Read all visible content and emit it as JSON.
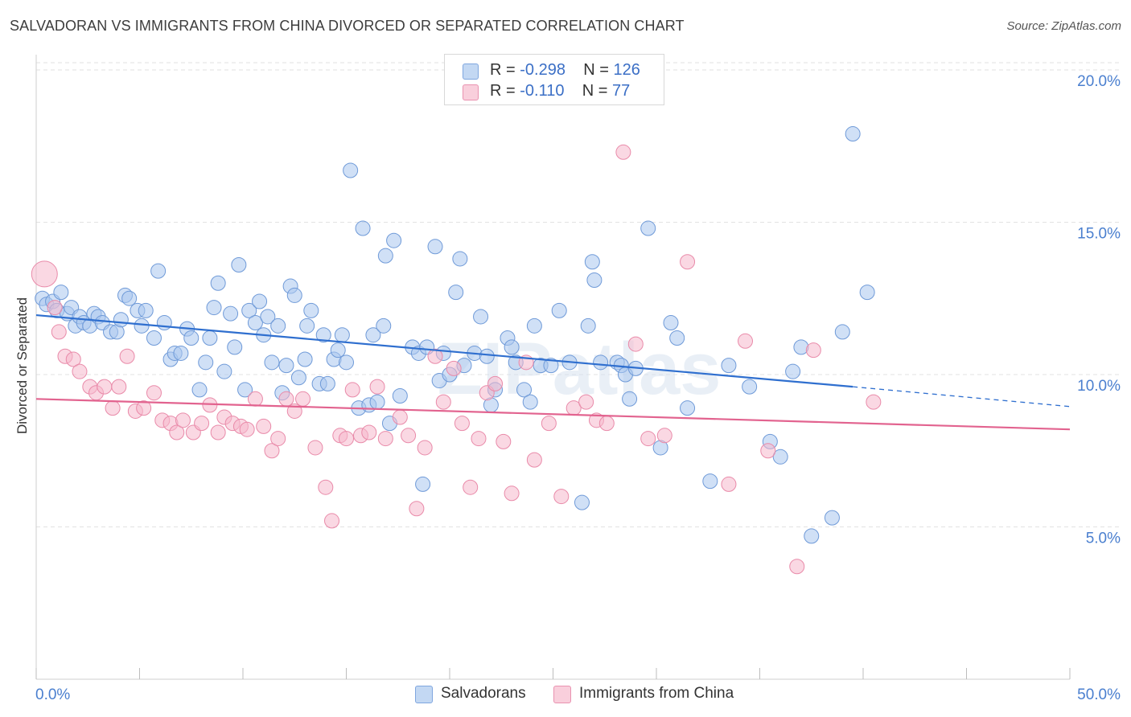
{
  "title": "SALVADORAN VS IMMIGRANTS FROM CHINA DIVORCED OR SEPARATED CORRELATION CHART",
  "source": "Source: ZipAtlas.com",
  "watermark": "ZIPatlas",
  "legend": {
    "rows": [
      {
        "r_label": "R = ",
        "r_value": "-0.298",
        "n_label": "N = ",
        "n_value": "126",
        "color": "#a9c7ee"
      },
      {
        "r_label": "R = ",
        "r_value": " -0.110",
        "n_label": "N = ",
        "n_value": " 77",
        "color": "#f5b8cc"
      }
    ]
  },
  "chart_data": {
    "type": "scatter",
    "xlabel": "",
    "ylabel": "Divorced or Separated",
    "xlim": [
      0,
      50
    ],
    "ylim": [
      0,
      20.5
    ],
    "x_tick_labels": [
      "0.0%",
      "50.0%"
    ],
    "y_ticks": [
      5,
      10,
      15,
      20
    ],
    "y_tick_labels": [
      "5.0%",
      "10.0%",
      "15.0%",
      "20.0%"
    ],
    "grid": true,
    "series": [
      {
        "name": "Salvadorans",
        "color": "#a9c7ee",
        "stroke": "#6f9ad8",
        "trend": {
          "x0": 0,
          "y0": 11.95,
          "x1": 39.5,
          "y1": 9.6,
          "dash_to": 50,
          "dash_y": 8.95,
          "color": "#2f6fcf"
        },
        "points": [
          [
            0.3,
            12.5
          ],
          [
            0.5,
            12.3
          ],
          [
            0.8,
            12.4
          ],
          [
            1.0,
            12.1
          ],
          [
            1.2,
            12.7
          ],
          [
            1.5,
            12.0
          ],
          [
            1.7,
            12.2
          ],
          [
            1.9,
            11.6
          ],
          [
            2.1,
            11.9
          ],
          [
            2.3,
            11.7
          ],
          [
            2.6,
            11.6
          ],
          [
            2.8,
            12.0
          ],
          [
            3.0,
            11.9
          ],
          [
            3.2,
            11.7
          ],
          [
            3.6,
            11.4
          ],
          [
            3.9,
            11.4
          ],
          [
            4.1,
            11.8
          ],
          [
            4.3,
            12.6
          ],
          [
            4.5,
            12.5
          ],
          [
            4.9,
            12.1
          ],
          [
            5.1,
            11.6
          ],
          [
            5.3,
            12.1
          ],
          [
            5.7,
            11.2
          ],
          [
            5.9,
            13.4
          ],
          [
            6.2,
            11.7
          ],
          [
            6.5,
            10.5
          ],
          [
            6.7,
            10.7
          ],
          [
            7.0,
            10.7
          ],
          [
            7.3,
            11.5
          ],
          [
            7.5,
            11.2
          ],
          [
            7.9,
            9.5
          ],
          [
            8.2,
            10.4
          ],
          [
            8.4,
            11.2
          ],
          [
            8.6,
            12.2
          ],
          [
            8.8,
            13.0
          ],
          [
            9.1,
            10.1
          ],
          [
            9.4,
            12.0
          ],
          [
            9.6,
            10.9
          ],
          [
            9.8,
            13.6
          ],
          [
            10.1,
            9.5
          ],
          [
            10.3,
            12.1
          ],
          [
            10.6,
            11.7
          ],
          [
            10.8,
            12.4
          ],
          [
            11.0,
            11.3
          ],
          [
            11.2,
            11.9
          ],
          [
            11.4,
            10.4
          ],
          [
            11.7,
            11.6
          ],
          [
            11.9,
            9.4
          ],
          [
            12.1,
            10.3
          ],
          [
            12.3,
            12.9
          ],
          [
            12.5,
            12.6
          ],
          [
            12.7,
            9.9
          ],
          [
            13.0,
            10.5
          ],
          [
            13.1,
            11.6
          ],
          [
            13.3,
            12.1
          ],
          [
            13.7,
            9.7
          ],
          [
            13.9,
            11.3
          ],
          [
            14.1,
            9.7
          ],
          [
            14.4,
            10.5
          ],
          [
            14.6,
            10.8
          ],
          [
            14.8,
            11.3
          ],
          [
            15.0,
            10.4
          ],
          [
            15.2,
            16.7
          ],
          [
            15.6,
            8.9
          ],
          [
            15.8,
            14.8
          ],
          [
            16.1,
            9.0
          ],
          [
            16.3,
            11.3
          ],
          [
            16.5,
            9.1
          ],
          [
            16.8,
            11.6
          ],
          [
            16.9,
            13.9
          ],
          [
            17.1,
            8.4
          ],
          [
            17.3,
            14.4
          ],
          [
            17.6,
            9.3
          ],
          [
            18.2,
            10.9
          ],
          [
            18.5,
            10.7
          ],
          [
            18.7,
            6.4
          ],
          [
            18.9,
            10.9
          ],
          [
            19.3,
            14.2
          ],
          [
            19.5,
            9.8
          ],
          [
            19.7,
            10.7
          ],
          [
            20.0,
            10.0
          ],
          [
            20.3,
            12.7
          ],
          [
            20.5,
            13.8
          ],
          [
            20.7,
            10.3
          ],
          [
            21.2,
            10.7
          ],
          [
            21.5,
            11.9
          ],
          [
            21.8,
            10.6
          ],
          [
            22.0,
            9.0
          ],
          [
            22.2,
            9.5
          ],
          [
            22.8,
            11.2
          ],
          [
            23.0,
            10.9
          ],
          [
            23.2,
            10.4
          ],
          [
            23.6,
            9.5
          ],
          [
            23.9,
            9.1
          ],
          [
            24.1,
            11.6
          ],
          [
            24.4,
            10.3
          ],
          [
            24.9,
            10.3
          ],
          [
            25.3,
            12.1
          ],
          [
            25.8,
            10.4
          ],
          [
            26.4,
            5.8
          ],
          [
            26.7,
            11.6
          ],
          [
            26.9,
            13.7
          ],
          [
            27.0,
            13.1
          ],
          [
            27.3,
            10.4
          ],
          [
            28.1,
            10.4
          ],
          [
            28.3,
            10.3
          ],
          [
            28.5,
            10.0
          ],
          [
            28.7,
            9.2
          ],
          [
            29.0,
            10.2
          ],
          [
            29.6,
            14.8
          ],
          [
            30.2,
            7.6
          ],
          [
            30.7,
            11.7
          ],
          [
            31.0,
            11.2
          ],
          [
            31.5,
            8.9
          ],
          [
            32.6,
            6.5
          ],
          [
            33.5,
            10.3
          ],
          [
            35.5,
            7.8
          ],
          [
            36.0,
            7.3
          ],
          [
            36.6,
            10.1
          ],
          [
            37.5,
            4.7
          ],
          [
            38.5,
            5.3
          ],
          [
            39.0,
            11.4
          ],
          [
            39.5,
            17.9
          ],
          [
            40.2,
            12.7
          ],
          [
            37.0,
            10.9
          ],
          [
            34.5,
            9.6
          ]
        ]
      },
      {
        "name": "Immigrants from China",
        "color": "#f5b8cc",
        "stroke": "#e98aa9",
        "trend": {
          "x0": 0,
          "y0": 9.2,
          "x1": 50,
          "y1": 8.2,
          "color": "#e2638f"
        },
        "points": [
          [
            0.4,
            13.3
          ],
          [
            0.9,
            12.2
          ],
          [
            1.1,
            11.4
          ],
          [
            1.4,
            10.6
          ],
          [
            1.8,
            10.5
          ],
          [
            2.1,
            10.1
          ],
          [
            2.6,
            9.6
          ],
          [
            2.9,
            9.4
          ],
          [
            3.3,
            9.6
          ],
          [
            3.7,
            8.9
          ],
          [
            4.0,
            9.6
          ],
          [
            4.4,
            10.6
          ],
          [
            4.8,
            8.8
          ],
          [
            5.2,
            8.9
          ],
          [
            5.7,
            9.4
          ],
          [
            6.1,
            8.5
          ],
          [
            6.5,
            8.4
          ],
          [
            6.8,
            8.1
          ],
          [
            7.1,
            8.5
          ],
          [
            7.6,
            8.1
          ],
          [
            8.0,
            8.4
          ],
          [
            8.4,
            9.0
          ],
          [
            8.8,
            8.1
          ],
          [
            9.1,
            8.6
          ],
          [
            9.5,
            8.4
          ],
          [
            9.9,
            8.3
          ],
          [
            10.2,
            8.2
          ],
          [
            10.6,
            9.2
          ],
          [
            11.0,
            8.3
          ],
          [
            11.4,
            7.5
          ],
          [
            11.7,
            7.9
          ],
          [
            12.1,
            9.2
          ],
          [
            12.5,
            8.8
          ],
          [
            12.9,
            9.2
          ],
          [
            13.5,
            7.6
          ],
          [
            14.0,
            6.3
          ],
          [
            14.3,
            5.2
          ],
          [
            14.7,
            8.0
          ],
          [
            15.0,
            7.9
          ],
          [
            15.3,
            9.5
          ],
          [
            15.7,
            8.0
          ],
          [
            16.1,
            8.1
          ],
          [
            16.5,
            9.6
          ],
          [
            16.9,
            7.9
          ],
          [
            17.6,
            8.6
          ],
          [
            18.0,
            8.0
          ],
          [
            18.4,
            5.6
          ],
          [
            18.8,
            7.6
          ],
          [
            19.3,
            10.6
          ],
          [
            19.7,
            9.1
          ],
          [
            20.2,
            10.2
          ],
          [
            20.6,
            8.4
          ],
          [
            21.0,
            6.3
          ],
          [
            21.4,
            7.9
          ],
          [
            21.8,
            9.4
          ],
          [
            22.2,
            9.7
          ],
          [
            22.6,
            7.8
          ],
          [
            23.0,
            6.1
          ],
          [
            23.7,
            10.4
          ],
          [
            24.1,
            7.2
          ],
          [
            24.8,
            8.4
          ],
          [
            25.4,
            6.0
          ],
          [
            26.0,
            8.9
          ],
          [
            26.6,
            9.1
          ],
          [
            27.1,
            8.5
          ],
          [
            27.6,
            8.4
          ],
          [
            28.4,
            17.3
          ],
          [
            29.0,
            11.0
          ],
          [
            29.6,
            7.9
          ],
          [
            31.5,
            13.7
          ],
          [
            33.5,
            6.4
          ],
          [
            34.3,
            11.1
          ],
          [
            35.4,
            7.5
          ],
          [
            36.8,
            3.7
          ],
          [
            37.6,
            10.8
          ],
          [
            40.5,
            9.1
          ],
          [
            30.4,
            8.0
          ]
        ]
      }
    ]
  },
  "bottom_legend": {
    "items": [
      {
        "label": "Salvadorans",
        "color": "#a9c7ee"
      },
      {
        "label": "Immigrants from China",
        "color": "#f5b8cc"
      }
    ]
  }
}
